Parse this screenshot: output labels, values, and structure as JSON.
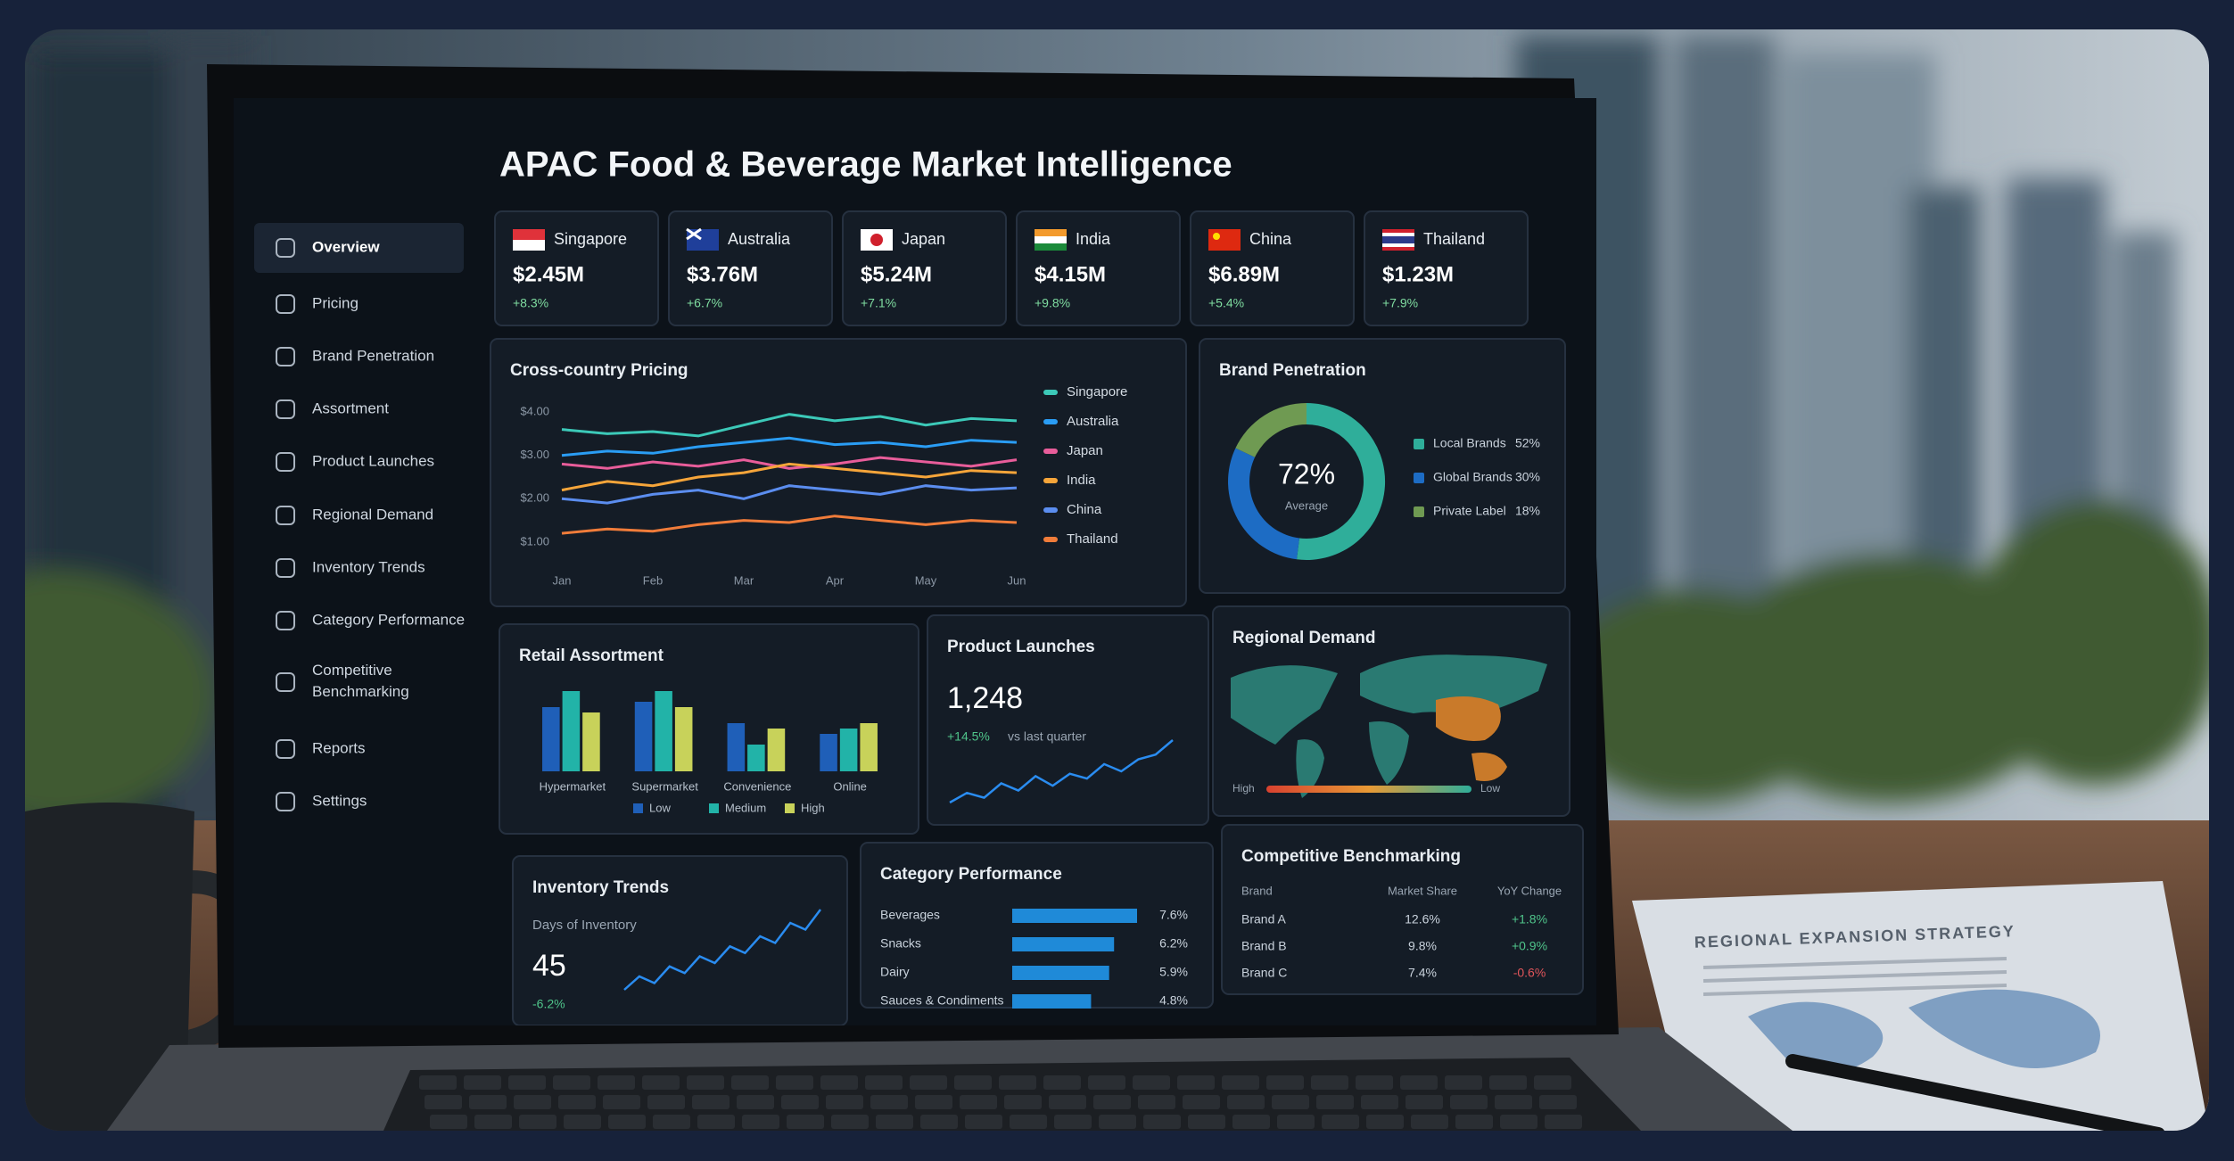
{
  "header": {
    "title": "APAC Food & Beverage Market Intelligence"
  },
  "nav": [
    "Overview",
    "Pricing",
    "Brand Penetration",
    "Assortment",
    "Product Launches",
    "Regional Demand",
    "Inventory Trends",
    "Category Performance",
    "Competitive Benchmarking",
    "Reports",
    "Settings"
  ],
  "kpis": [
    {
      "country": "Singapore",
      "value": "$2.45M",
      "change": "+8.3%"
    },
    {
      "country": "Australia",
      "value": "$3.76M",
      "change": "+6.7%"
    },
    {
      "country": "Japan",
      "value": "$5.24M",
      "change": "+7.1%"
    },
    {
      "country": "India",
      "value": "$4.15M",
      "change": "+9.8%"
    },
    {
      "country": "China",
      "value": "$6.89M",
      "change": "+5.4%"
    },
    {
      "country": "Thailand",
      "value": "$1.23M",
      "change": "+7.9%"
    }
  ],
  "chart_data": [
    {
      "type": "line",
      "title": "Cross-country Pricing",
      "categories": [
        "Jan",
        null,
        "Feb",
        null,
        "Mar",
        null,
        "Apr",
        null,
        "May",
        null,
        "Jun"
      ],
      "ylim": [
        0.75,
        4.25
      ],
      "yticks": [
        {
          "value": 1,
          "label": "$1.00"
        },
        {
          "value": 2,
          "label": "$2.00"
        },
        {
          "value": 3,
          "label": "$3.00"
        },
        {
          "value": 4,
          "label": "$4.00"
        }
      ],
      "series": [
        {
          "name": "Singapore",
          "color": "#3cc9b8",
          "values": [
            3.6,
            3.5,
            3.55,
            3.45,
            3.7,
            3.95,
            3.8,
            3.9,
            3.7,
            3.85,
            3.8
          ]
        },
        {
          "name": "Australia",
          "color": "#2a9df4",
          "values": [
            3.0,
            3.1,
            3.05,
            3.2,
            3.3,
            3.4,
            3.25,
            3.3,
            3.2,
            3.35,
            3.3
          ]
        },
        {
          "name": "Japan",
          "color": "#e85d9a",
          "values": [
            2.8,
            2.7,
            2.85,
            2.75,
            2.9,
            2.7,
            2.8,
            2.95,
            2.85,
            2.75,
            2.9
          ]
        },
        {
          "name": "India",
          "color": "#f6a53a",
          "values": [
            2.2,
            2.4,
            2.3,
            2.5,
            2.6,
            2.8,
            2.7,
            2.6,
            2.5,
            2.65,
            2.6
          ]
        },
        {
          "name": "China",
          "color": "#5b8def",
          "values": [
            2.0,
            1.9,
            2.1,
            2.2,
            2.0,
            2.3,
            2.2,
            2.1,
            2.3,
            2.2,
            2.25
          ]
        },
        {
          "name": "Thailand",
          "color": "#f07c3a",
          "values": [
            1.2,
            1.3,
            1.25,
            1.4,
            1.5,
            1.45,
            1.6,
            1.5,
            1.4,
            1.5,
            1.45
          ]
        }
      ]
    },
    {
      "type": "pie",
      "title": "Brand Penetration",
      "center_label": "72%",
      "center_sublabel": "Average",
      "categories": [
        "Local Brands",
        "Global Brands",
        "Private Label"
      ],
      "values": [
        52,
        30,
        18
      ],
      "value_labels": [
        "52%",
        "30%",
        "18%"
      ],
      "colors": [
        "#2fae9a",
        "#1d6cc4",
        "#6f9a52"
      ]
    },
    {
      "type": "bar",
      "title": "Retail Assortment",
      "categories": [
        "Hypermarket",
        "Supermarket",
        "Convenience",
        "Online"
      ],
      "series": [
        {
          "name": "Low",
          "color": "#1f5fb8",
          "values": [
            60,
            65,
            45,
            35
          ]
        },
        {
          "name": "Medium",
          "color": "#22b3a8",
          "values": [
            75,
            75,
            25,
            40
          ]
        },
        {
          "name": "High",
          "color": "#c8d25a",
          "values": [
            55,
            60,
            40,
            45
          ]
        }
      ]
    },
    {
      "type": "line",
      "title": "Product Launches",
      "kpi": "1,248",
      "change": "+14.5%",
      "note": "vs last quarter",
      "color": "#2a8cf0",
      "values": [
        10,
        14,
        12,
        18,
        15,
        21,
        17,
        22,
        20,
        26,
        23,
        28,
        30,
        36
      ]
    },
    {
      "type": "line",
      "title": "Inventory Trends",
      "subtitle": "Days of Inventory",
      "kpi": "45",
      "change": "-6.2%",
      "color": "#2a8cf0",
      "values": [
        20,
        24,
        22,
        27,
        25,
        30,
        28,
        33,
        31,
        36,
        34,
        40,
        38,
        44
      ]
    },
    {
      "type": "hbar",
      "title": "Category Performance",
      "categories": [
        "Beverages",
        "Snacks",
        "Dairy",
        "Sauces & Condiments"
      ],
      "values": [
        7.6,
        6.2,
        5.9,
        4.8
      ],
      "value_labels": [
        "7.6%",
        "6.2%",
        "5.9%",
        "4.8%"
      ],
      "color": "#1f8ad8"
    }
  ],
  "regional_demand": {
    "title": "Regional Demand",
    "legend_high": "High",
    "legend_low": "Low"
  },
  "table": {
    "title": "Competitive Benchmarking",
    "header": [
      "Brand",
      "Market Share",
      "YoY Change"
    ],
    "rows": [
      [
        "Brand A",
        "12.6%",
        "+1.8%"
      ],
      [
        "Brand B",
        "9.8%",
        "+0.9%"
      ],
      [
        "Brand C",
        "7.4%",
        "-0.6%"
      ]
    ]
  },
  "paper": {
    "title": "REGIONAL EXPANSION STRATEGY"
  }
}
